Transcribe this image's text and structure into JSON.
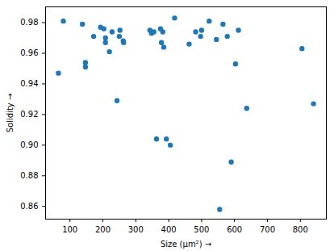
{
  "chart_data": {
    "type": "scatter",
    "x_label": "Size (µm²)",
    "y_label": "Solidity",
    "color": "#1f77b4",
    "marker": "circle",
    "x": [
      65,
      80,
      138,
      147,
      147,
      172,
      193,
      203,
      208,
      208,
      220,
      228,
      243,
      250,
      252,
      262,
      263,
      343,
      348,
      355,
      363,
      375,
      378,
      382,
      385,
      393,
      405,
      418,
      462,
      482,
      497,
      500,
      523,
      545,
      555,
      565,
      578,
      590,
      603,
      612,
      637,
      805,
      840
    ],
    "values": [
      0.947,
      0.981,
      0.979,
      0.954,
      0.951,
      0.971,
      0.977,
      0.976,
      0.97,
      0.967,
      0.961,
      0.974,
      0.929,
      0.971,
      0.975,
      0.968,
      0.967,
      0.975,
      0.973,
      0.974,
      0.904,
      0.976,
      0.967,
      0.974,
      0.964,
      0.904,
      0.9,
      0.983,
      0.966,
      0.974,
      0.971,
      0.975,
      0.981,
      0.969,
      0.858,
      0.979,
      0.971,
      0.889,
      0.953,
      0.975,
      0.924,
      0.963,
      0.927
    ],
    "xlim": [
      26,
      879
    ],
    "xticks": [
      100,
      200,
      300,
      400,
      500,
      600,
      700,
      800
    ],
    "ylim": [
      0.8517,
      0.9903
    ],
    "yticks": [
      0.86,
      0.88,
      {
        "value": 0.9,
        "label": "0.90"
      },
      0.92,
      0.94,
      0.96,
      0.98
    ],
    "grid": false
  }
}
